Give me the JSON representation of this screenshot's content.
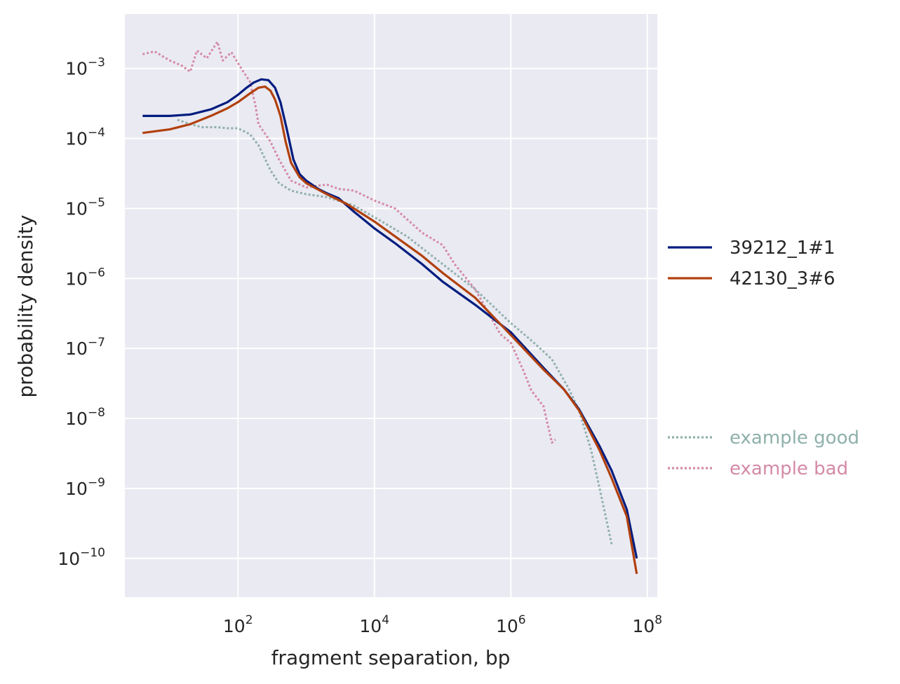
{
  "chart_data": {
    "type": "line",
    "title": "",
    "xlabel": "fragment separation, bp",
    "ylabel": "probability density",
    "xscale": "log",
    "yscale": "log",
    "xlim": [
      2.2,
      140000000.0
    ],
    "ylim": [
      2.8e-11,
      0.006
    ],
    "x_ticks": [
      {
        "value": 100,
        "base": "10",
        "exp": "2"
      },
      {
        "value": 10000,
        "base": "10",
        "exp": "4"
      },
      {
        "value": 1000000,
        "base": "10",
        "exp": "6"
      },
      {
        "value": 100000000,
        "base": "10",
        "exp": "8"
      }
    ],
    "y_ticks": [
      {
        "value": 0.001,
        "base": "10",
        "exp": "−3"
      },
      {
        "value": 0.0001,
        "base": "10",
        "exp": "−4"
      },
      {
        "value": 1e-05,
        "base": "10",
        "exp": "−5"
      },
      {
        "value": 1e-06,
        "base": "10",
        "exp": "−6"
      },
      {
        "value": 1e-07,
        "base": "10",
        "exp": "−7"
      },
      {
        "value": 1e-08,
        "base": "10",
        "exp": "−8"
      },
      {
        "value": 1e-09,
        "base": "10",
        "exp": "−9"
      },
      {
        "value": 1e-10,
        "base": "10",
        "exp": "−10"
      }
    ],
    "grid": true,
    "background": "#eaeaf2",
    "legend_placement": "right",
    "series": [
      {
        "name": "39212_1#1",
        "color": "#001c7f",
        "style": "solid",
        "points": [
          [
            4,
            0.00021
          ],
          [
            10,
            0.00021
          ],
          [
            20,
            0.00022
          ],
          [
            40,
            0.00026
          ],
          [
            70,
            0.00033
          ],
          [
            100,
            0.00042
          ],
          [
            130,
            0.00052
          ],
          [
            170,
            0.00063
          ],
          [
            220,
            0.0007
          ],
          [
            280,
            0.00068
          ],
          [
            350,
            0.00053
          ],
          [
            420,
            0.00033
          ],
          [
            520,
            0.000135
          ],
          [
            650,
            5e-05
          ],
          [
            800,
            3.1e-05
          ],
          [
            1000,
            2.5e-05
          ],
          [
            1500,
            1.9e-05
          ],
          [
            2000,
            1.65e-05
          ],
          [
            3000,
            1.4e-05
          ],
          [
            5000,
            9e-06
          ],
          [
            10000,
            5.2e-06
          ],
          [
            20000,
            3.2e-06
          ],
          [
            50000,
            1.6e-06
          ],
          [
            100000,
            9e-07
          ],
          [
            300000,
            4.2e-07
          ],
          [
            1000000,
            1.7e-07
          ],
          [
            3000000,
            5.3e-08
          ],
          [
            6000000,
            2.6e-08
          ],
          [
            10000000,
            1.35e-08
          ],
          [
            20000000,
            4e-09
          ],
          [
            30000000,
            1.8e-09
          ],
          [
            50000000,
            5e-10
          ],
          [
            70000000,
            1e-10
          ]
        ]
      },
      {
        "name": "42130_3#6",
        "color": "#b1400d",
        "style": "solid",
        "points": [
          [
            4,
            0.00012
          ],
          [
            10,
            0.000135
          ],
          [
            20,
            0.00016
          ],
          [
            40,
            0.00021
          ],
          [
            70,
            0.00027
          ],
          [
            100,
            0.00033
          ],
          [
            150,
            0.00044
          ],
          [
            200,
            0.00053
          ],
          [
            250,
            0.00055
          ],
          [
            300,
            0.00048
          ],
          [
            350,
            0.00036
          ],
          [
            420,
            0.00021
          ],
          [
            500,
            9e-05
          ],
          [
            600,
            4.5e-05
          ],
          [
            800,
            2.8e-05
          ],
          [
            1000,
            2.3e-05
          ],
          [
            2000,
            1.6e-05
          ],
          [
            4000,
            1.15e-05
          ],
          [
            10000,
            6.5e-06
          ],
          [
            20000,
            4e-06
          ],
          [
            50000,
            2.1e-06
          ],
          [
            100000,
            1.2e-06
          ],
          [
            300000,
            5.3e-07
          ],
          [
            1000000,
            1.55e-07
          ],
          [
            3000000,
            5e-08
          ],
          [
            6000000,
            2.6e-08
          ],
          [
            10000000,
            1.3e-08
          ],
          [
            20000000,
            3.5e-09
          ],
          [
            30000000,
            1.4e-09
          ],
          [
            50000000,
            4e-10
          ],
          [
            70000000,
            6e-11
          ]
        ]
      },
      {
        "name": "example good",
        "color": "#8fb0ab",
        "style": "dotted",
        "points": [
          [
            13,
            0.000185
          ],
          [
            20,
            0.00016
          ],
          [
            30,
            0.000145
          ],
          [
            50,
            0.000145
          ],
          [
            70,
            0.00014
          ],
          [
            100,
            0.00014
          ],
          [
            150,
            0.000115
          ],
          [
            200,
            8e-05
          ],
          [
            300,
            3.5e-05
          ],
          [
            400,
            2.3e-05
          ],
          [
            600,
            1.8e-05
          ],
          [
            1000,
            1.6e-05
          ],
          [
            2000,
            1.45e-05
          ],
          [
            5000,
            1.1e-05
          ],
          [
            10000,
            7.5e-06
          ],
          [
            30000,
            4e-06
          ],
          [
            100000,
            1.6e-06
          ],
          [
            300000,
            7e-07
          ],
          [
            1000000,
            2.3e-07
          ],
          [
            2000000,
            1.3e-07
          ],
          [
            4000000,
            7e-08
          ],
          [
            7000000,
            2.7e-08
          ],
          [
            10000000,
            1.3e-08
          ],
          [
            15000000,
            3.5e-09
          ],
          [
            20000000,
            1e-09
          ],
          [
            30000000,
            1.6e-10
          ]
        ]
      },
      {
        "name": "example bad",
        "color": "#d48aa6",
        "style": "dotted",
        "points": [
          [
            4,
            0.0016
          ],
          [
            6,
            0.00175
          ],
          [
            10,
            0.0013
          ],
          [
            15,
            0.0011
          ],
          [
            20,
            0.0009
          ],
          [
            25,
            0.0018
          ],
          [
            35,
            0.0014
          ],
          [
            50,
            0.0024
          ],
          [
            60,
            0.0013
          ],
          [
            80,
            0.0017
          ],
          [
            100,
            0.0012
          ],
          [
            120,
            0.0009
          ],
          [
            150,
            0.00065
          ],
          [
            180,
            0.0003
          ],
          [
            200,
            0.00016
          ],
          [
            300,
            9e-05
          ],
          [
            400,
            5e-05
          ],
          [
            600,
            2.5e-05
          ],
          [
            1000,
            2e-05
          ],
          [
            2000,
            2.2e-05
          ],
          [
            3000,
            1.9e-05
          ],
          [
            5000,
            1.8e-05
          ],
          [
            10000,
            1.3e-05
          ],
          [
            20000,
            1e-05
          ],
          [
            50000,
            4.5e-06
          ],
          [
            100000,
            3e-06
          ],
          [
            150000,
            1.6e-06
          ],
          [
            300000,
            7e-07
          ],
          [
            700000,
            1.6e-07
          ],
          [
            1000000,
            1.2e-07
          ],
          [
            1500000,
            5e-08
          ],
          [
            2000000,
            2.5e-08
          ],
          [
            3000000,
            1.5e-08
          ],
          [
            4000000,
            4.5e-09
          ],
          [
            4500000,
            5e-09
          ]
        ]
      }
    ]
  }
}
